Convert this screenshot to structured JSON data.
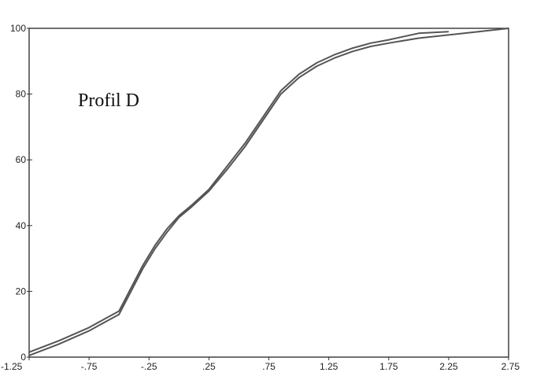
{
  "chart_data": {
    "type": "line",
    "title": "",
    "xlabel": "",
    "ylabel": "",
    "xlim": [
      -1.25,
      2.75
    ],
    "ylim": [
      0,
      100
    ],
    "grid": false,
    "legend": "none",
    "annotation": "Profil D",
    "x_ticks": [
      -1.25,
      -0.75,
      -0.25,
      0.25,
      0.75,
      1.25,
      1.75,
      2.25,
      2.75
    ],
    "x_tick_labels": [
      "-1.25",
      "-.75",
      "-.25",
      ".25",
      ".75",
      "1.25",
      "1.75",
      "2.25",
      "2.75"
    ],
    "y_ticks": [
      0,
      20,
      40,
      60,
      80,
      100
    ],
    "y_tick_labels": [
      "0",
      "20",
      "40",
      "60",
      "80",
      "100"
    ],
    "line_color": "#555555",
    "series": [
      {
        "x": [
          -1.25,
          -1.0,
          -0.75,
          -0.6,
          -0.5,
          -0.4,
          -0.3,
          -0.2,
          -0.1,
          0.0,
          0.1,
          0.25,
          0.4,
          0.55,
          0.7,
          0.85,
          1.0,
          1.15,
          1.3,
          1.45,
          1.6,
          1.75,
          2.0,
          2.25
        ],
        "y": [
          1.5,
          5,
          9,
          12,
          14,
          21,
          28,
          34,
          39,
          43,
          46,
          51,
          58,
          65,
          73,
          81,
          86,
          89.5,
          92,
          94,
          95.5,
          96.5,
          98.5,
          99
        ]
      },
      {
        "x": [
          -1.25,
          -1.0,
          -0.75,
          -0.6,
          -0.5,
          -0.4,
          -0.3,
          -0.2,
          -0.1,
          0.0,
          0.1,
          0.25,
          0.4,
          0.55,
          0.7,
          0.85,
          1.0,
          1.15,
          1.3,
          1.45,
          1.6,
          1.75,
          2.0,
          2.25,
          2.5,
          2.75
        ],
        "y": [
          0.5,
          4,
          8,
          11,
          13,
          20,
          27,
          33,
          38,
          42.5,
          45.5,
          50.5,
          57,
          64,
          72,
          80,
          85,
          88.5,
          91,
          93,
          94.5,
          95.5,
          97,
          98,
          99,
          100
        ]
      }
    ]
  }
}
